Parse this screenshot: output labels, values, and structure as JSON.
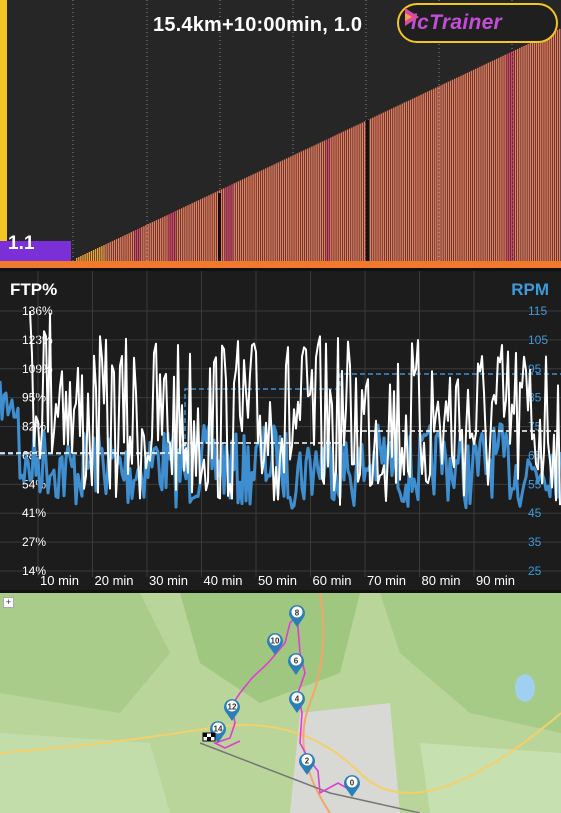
{
  "header": {
    "title": "15.4km+10:00min, 1.0",
    "app_name": "icTrainer"
  },
  "profile": {
    "segment_label": "1.1"
  },
  "chart_data": {
    "type": "line",
    "title": "",
    "xlabel": "",
    "left_axis_label": "FTP%",
    "right_axis_label": "RPM",
    "left_ticks": [
      "136%",
      "123%",
      "109%",
      "95%",
      "82%",
      "68%",
      "54%",
      "41%",
      "27%",
      "14%"
    ],
    "right_ticks": [
      "115",
      "105",
      "95",
      "85",
      "75",
      "65",
      "55",
      "45",
      "35",
      "25"
    ],
    "x_ticks": [
      "10 min",
      "20 min",
      "30 min",
      "40 min",
      "50 min",
      "60 min",
      "70 min",
      "80 min",
      "90 min"
    ],
    "series": [
      {
        "name": "",
        "color": "#ffffff"
      },
      {
        "name": "",
        "color": "#3f8fd0"
      }
    ]
  },
  "map": {
    "zoom_in": "+",
    "markers": [
      "0",
      "2",
      "4",
      "6",
      "8",
      "10",
      "12",
      "14"
    ]
  },
  "colors": {
    "accent_yellow": "#f3c623",
    "profile_bar": "#ea7b5c",
    "profile_hot": "#d94a6a",
    "rpm_line": "#3f8fd0",
    "route": "#e23cd3"
  }
}
